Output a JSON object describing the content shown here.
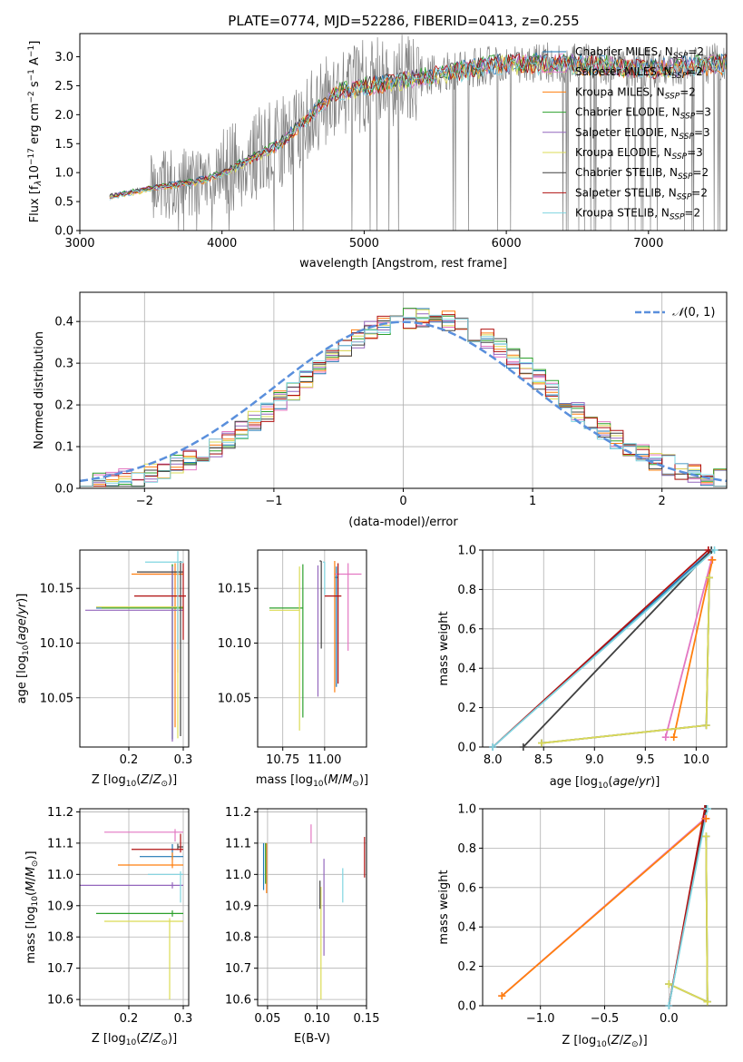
{
  "figure": {
    "title": "PLATE=0774, MJD=52286, FIBERID=0413, z=0.255"
  },
  "colors": {
    "data": "#808080",
    "gauss": "#5a8fdc"
  },
  "models": [
    {
      "name": "Chabrier MILES",
      "n": "2",
      "color": "#1f77b4"
    },
    {
      "name": "Salpeter MILES",
      "n": "2",
      "color": "#e377c2"
    },
    {
      "name": "Kroupa MILES",
      "n": "2",
      "color": "#ff7f0e"
    },
    {
      "name": "Chabrier ELODIE",
      "n": "3",
      "color": "#2ca02c"
    },
    {
      "name": "Salpeter ELODIE",
      "n": "3",
      "color": "#9467bd"
    },
    {
      "name": "Kroupa ELODIE",
      "n": "3",
      "color": "#dbdb55"
    },
    {
      "name": "Chabrier STELIB",
      "n": "2",
      "color": "#404040"
    },
    {
      "name": "Salpeter STELIB",
      "n": "2",
      "color": "#b01010"
    },
    {
      "name": "Kroupa STELIB",
      "n": "2",
      "color": "#7fd4e0"
    }
  ],
  "chart_data": [
    {
      "id": "spectrum",
      "type": "line",
      "xlabel": "wavelength [Angstrom, rest frame]",
      "ylabel": "Flux [f_λ 10^-17 erg cm^-2 s^-1 A^-1]",
      "xlim": [
        3000,
        7550
      ],
      "ylim": [
        0,
        3.4
      ],
      "xticks": [
        3000,
        4000,
        5000,
        6000,
        7000
      ],
      "yticks": [
        0.0,
        0.5,
        1.0,
        1.5,
        2.0,
        2.5,
        3.0
      ],
      "grid": false,
      "legend": "top-right",
      "data_range": [
        3210,
        7550
      ],
      "continuum": [
        [
          3210,
          0.6
        ],
        [
          3500,
          0.75
        ],
        [
          3800,
          0.85
        ],
        [
          4000,
          1.0
        ],
        [
          4400,
          1.5
        ],
        [
          4800,
          2.4
        ],
        [
          5000,
          2.5
        ],
        [
          5500,
          2.7
        ],
        [
          6000,
          2.9
        ],
        [
          6500,
          2.9
        ],
        [
          7000,
          2.8
        ],
        [
          7550,
          2.9
        ]
      ]
    },
    {
      "id": "residuals",
      "type": "line",
      "xlabel": "(data-model)/error",
      "ylabel": "Normed distribution",
      "xlim": [
        -2.5,
        2.5
      ],
      "ylim": [
        0,
        0.47
      ],
      "xticks": [
        -2,
        -1,
        0,
        1,
        2
      ],
      "yticks": [
        0.0,
        0.1,
        0.2,
        0.3,
        0.4
      ],
      "grid": true,
      "legend": "top-right",
      "legend_label": "N(0,1)",
      "gauss": {
        "mu": 0,
        "sigma": 1
      }
    },
    {
      "id": "age-vs-Z",
      "type": "scatter",
      "xlabel": "Z [log10(Z/Z⊙)]",
      "ylabel": "age  [log10(age/yr)]",
      "xlim": [
        0.11,
        0.31
      ],
      "ylim": [
        10.005,
        10.185
      ],
      "xticks": [
        0.2,
        0.3
      ],
      "yticks": [
        10.05,
        10.1,
        10.15
      ],
      "grid": true,
      "points": [
        {
          "x": 0.28,
          "y": 10.132,
          "xerr": [
            0.14,
            0.02
          ],
          "yerr": [
            0.12,
            0.04
          ]
        },
        {
          "x": 0.29,
          "y": 10.163,
          "xerr": [
            0.07,
            0.01
          ],
          "yerr": [
            0.09,
            0.01
          ]
        },
        {
          "x": 0.285,
          "y": 10.163,
          "xerr": [
            0.08,
            0.015
          ],
          "yerr": [
            0.14,
            0.01
          ]
        },
        {
          "x": 0.28,
          "y": 10.132,
          "xerr": [
            0.13,
            0.02
          ],
          "yerr": [
            0.12,
            0.04
          ]
        },
        {
          "x": 0.28,
          "y": 10.13,
          "xerr": [
            0.16,
            0.02
          ],
          "yerr": [
            0.12,
            0.04
          ]
        },
        {
          "x": 0.29,
          "y": 10.133,
          "xerr": [
            0.15,
            0.01
          ],
          "yerr": [
            0.12,
            0.04
          ]
        },
        {
          "x": 0.295,
          "y": 10.165,
          "xerr": [
            0.08,
            0.005
          ],
          "yerr": [
            0.15,
            0.01
          ]
        },
        {
          "x": 0.3,
          "y": 10.143,
          "xerr": [
            0.09,
            0.005
          ],
          "yerr": [
            0.04,
            0.03
          ]
        },
        {
          "x": 0.29,
          "y": 10.174,
          "xerr": [
            0.06,
            0.01
          ],
          "yerr": [
            0.08,
            0.01
          ]
        }
      ]
    },
    {
      "id": "age-vs-mass",
      "type": "scatter",
      "xlabel": "mass [log10(M/M⊙)]",
      "xlim": [
        10.6,
        11.25
      ],
      "ylim": [
        10.005,
        10.185
      ],
      "xticks": [
        10.75,
        11.0
      ],
      "yticks": [
        10.05,
        10.1,
        10.15
      ],
      "grid": true,
      "points": [
        {
          "x": 11.07,
          "y": 10.16,
          "xerr": [
            0.01,
            0.01
          ],
          "yerr": [
            0.1,
            0.01
          ]
        },
        {
          "x": 11.14,
          "y": 10.163,
          "xerr": [
            0.08,
            0.08
          ],
          "yerr": [
            0.07,
            0.01
          ]
        },
        {
          "x": 11.06,
          "y": 10.165,
          "xerr": [
            0.0,
            0.0
          ],
          "yerr": [
            0.11,
            0.01
          ]
        },
        {
          "x": 10.87,
          "y": 10.132,
          "xerr": [
            0.2,
            0.0
          ],
          "yerr": [
            0.1,
            0.04
          ]
        },
        {
          "x": 10.96,
          "y": 10.131,
          "xerr": [
            0.0,
            0.0
          ],
          "yerr": [
            0.08,
            0.04
          ]
        },
        {
          "x": 10.85,
          "y": 10.13,
          "xerr": [
            0.18,
            0.0
          ],
          "yerr": [
            0.11,
            0.04
          ]
        },
        {
          "x": 10.98,
          "y": 10.175,
          "xerr": [
            0.01,
            0.0
          ],
          "yerr": [
            0.08,
            0.0
          ]
        },
        {
          "x": 11.08,
          "y": 10.143,
          "xerr": [
            0.08,
            0.02
          ],
          "yerr": [
            0.08,
            0.03
          ]
        },
        {
          "x": 11.0,
          "y": 10.174,
          "xerr": [
            0.01,
            0.0
          ],
          "yerr": [
            0.03,
            0.0
          ]
        }
      ]
    },
    {
      "id": "weight-vs-age",
      "type": "line",
      "xlabel": "age  [log10(age/yr)]",
      "ylabel": "mass weight",
      "xlim": [
        7.9,
        10.3
      ],
      "ylim": [
        0,
        1
      ],
      "xticks": [
        8.0,
        8.5,
        9.0,
        9.5,
        10.0
      ],
      "yticks": [
        0.0,
        0.2,
        0.4,
        0.6,
        0.8,
        1.0
      ],
      "grid": true,
      "series": [
        {
          "model": 0,
          "x": [
            8.0,
            10.15
          ],
          "y": [
            0.0,
            1.0
          ]
        },
        {
          "model": 1,
          "x": [
            9.7,
            10.15
          ],
          "y": [
            0.05,
            0.95
          ]
        },
        {
          "model": 2,
          "x": [
            9.78,
            10.16
          ],
          "y": [
            0.05,
            0.95
          ]
        },
        {
          "model": 3,
          "x": [
            8.48,
            10.1,
            10.13
          ],
          "y": [
            0.02,
            0.11,
            0.86
          ]
        },
        {
          "model": 4,
          "x": [
            8.48,
            10.1,
            10.13
          ],
          "y": [
            0.02,
            0.11,
            0.86
          ]
        },
        {
          "model": 5,
          "x": [
            8.48,
            10.1,
            10.13
          ],
          "y": [
            0.02,
            0.11,
            0.86
          ]
        },
        {
          "model": 6,
          "x": [
            8.3,
            10.15
          ],
          "y": [
            0.0,
            1.0
          ]
        },
        {
          "model": 7,
          "x": [
            8.0,
            10.12
          ],
          "y": [
            0.0,
            1.0
          ]
        },
        {
          "model": 8,
          "x": [
            8.0,
            10.18
          ],
          "y": [
            0.0,
            1.0
          ]
        }
      ]
    },
    {
      "id": "mass-vs-Z",
      "type": "scatter",
      "xlabel": "Z [log10(Z/Z⊙)]",
      "ylabel": "mass [log10(M/M⊙)]",
      "xlim": [
        0.11,
        0.31
      ],
      "ylim": [
        10.58,
        11.21
      ],
      "xticks": [
        0.2,
        0.3
      ],
      "yticks": [
        10.6,
        10.7,
        10.8,
        10.9,
        11.0,
        11.1,
        11.2
      ],
      "grid": true,
      "points": [
        {
          "x": 0.28,
          "y": 11.057,
          "xerr": [
            0.06,
            0.02
          ],
          "yerr": [
            0.01,
            0.04
          ]
        },
        {
          "x": 0.285,
          "y": 11.135,
          "xerr": [
            0.13,
            0.015
          ],
          "yerr": [
            0.03,
            0.01
          ]
        },
        {
          "x": 0.28,
          "y": 11.03,
          "xerr": [
            0.1,
            0.02
          ],
          "yerr": [
            0.01,
            0.04
          ]
        },
        {
          "x": 0.28,
          "y": 10.875,
          "xerr": [
            0.14,
            0.02
          ],
          "yerr": [
            0.01,
            0.01
          ]
        },
        {
          "x": 0.28,
          "y": 10.965,
          "xerr": [
            0.18,
            0.02
          ],
          "yerr": [
            0.01,
            0.01
          ]
        },
        {
          "x": 0.275,
          "y": 10.85,
          "xerr": [
            0.12,
            0.025
          ],
          "yerr": [
            0.25,
            0.01
          ]
        },
        {
          "x": 0.29,
          "y": 11.088,
          "xerr": [
            0.0,
            0.01
          ],
          "yerr": [
            0.01,
            0.01
          ]
        },
        {
          "x": 0.295,
          "y": 11.08,
          "xerr": [
            0.09,
            0.005
          ],
          "yerr": [
            0.01,
            0.05
          ]
        },
        {
          "x": 0.295,
          "y": 11.0,
          "xerr": [
            0.06,
            0.005
          ],
          "yerr": [
            0.09,
            0.01
          ]
        }
      ]
    },
    {
      "id": "mass-vs-EBV",
      "type": "scatter",
      "xlabel": "E(B-V)",
      "xlim": [
        0.04,
        0.15
      ],
      "ylim": [
        10.58,
        11.21
      ],
      "xticks": [
        0.05,
        0.1,
        0.15
      ],
      "yticks": [
        10.6,
        10.7,
        10.8,
        10.9,
        11.0,
        11.1,
        11.2
      ],
      "grid": true,
      "points": [
        {
          "x": 0.046,
          "y": 11.02,
          "xerr": [
            0,
            0
          ],
          "yerr": [
            0.07,
            0.08
          ]
        },
        {
          "x": 0.094,
          "y": 11.13,
          "xerr": [
            0,
            0
          ],
          "yerr": [
            0.03,
            0.03
          ]
        },
        {
          "x": 0.049,
          "y": 11.0,
          "xerr": [
            0,
            0
          ],
          "yerr": [
            0.06,
            0.1
          ]
        },
        {
          "x": 0.048,
          "y": 11.03,
          "xerr": [
            0,
            0
          ],
          "yerr": [
            0.06,
            0.07
          ]
        },
        {
          "x": 0.107,
          "y": 10.9,
          "xerr": [
            0,
            0
          ],
          "yerr": [
            0.16,
            0.15
          ]
        },
        {
          "x": 0.104,
          "y": 10.85,
          "xerr": [
            0,
            0
          ],
          "yerr": [
            0.25,
            0.11
          ]
        },
        {
          "x": 0.103,
          "y": 10.95,
          "xerr": [
            0,
            0
          ],
          "yerr": [
            0.06,
            0.03
          ]
        },
        {
          "x": 0.148,
          "y": 11.05,
          "xerr": [
            0,
            0
          ],
          "yerr": [
            0.06,
            0.07
          ]
        },
        {
          "x": 0.126,
          "y": 10.96,
          "xerr": [
            0,
            0
          ],
          "yerr": [
            0.05,
            0.06
          ]
        }
      ]
    },
    {
      "id": "weight-vs-Z",
      "type": "line",
      "xlabel": "Z [log10(Z/Z⊙)]",
      "ylabel": "mass weight",
      "xlim": [
        -1.45,
        0.45
      ],
      "ylim": [
        0,
        1
      ],
      "xticks": [
        -1.0,
        -0.5,
        0.0
      ],
      "yticks": [
        0.0,
        0.2,
        0.4,
        0.6,
        0.8,
        1.0
      ],
      "grid": true,
      "series": [
        {
          "model": 0,
          "x": [
            0.0,
            0.29
          ],
          "y": [
            0.0,
            1.0
          ]
        },
        {
          "model": 1,
          "x": [
            -1.3,
            0.28
          ],
          "y": [
            0.05,
            0.95
          ]
        },
        {
          "model": 2,
          "x": [
            -1.3,
            0.29
          ],
          "y": [
            0.05,
            0.95
          ]
        },
        {
          "model": 3,
          "x": [
            0.0,
            0.3,
            0.29
          ],
          "y": [
            0.11,
            0.02,
            0.86
          ]
        },
        {
          "model": 4,
          "x": [
            0.0,
            0.3,
            0.29
          ],
          "y": [
            0.11,
            0.02,
            0.86
          ]
        },
        {
          "model": 5,
          "x": [
            0.0,
            0.3,
            0.29
          ],
          "y": [
            0.11,
            0.02,
            0.86
          ]
        },
        {
          "model": 6,
          "x": [
            0.0,
            0.29
          ],
          "y": [
            0.0,
            1.0
          ]
        },
        {
          "model": 7,
          "x": [
            0.0,
            0.28
          ],
          "y": [
            0.0,
            1.0
          ]
        },
        {
          "model": 8,
          "x": [
            0.0,
            0.3
          ],
          "y": [
            0.0,
            1.0
          ]
        }
      ]
    }
  ]
}
